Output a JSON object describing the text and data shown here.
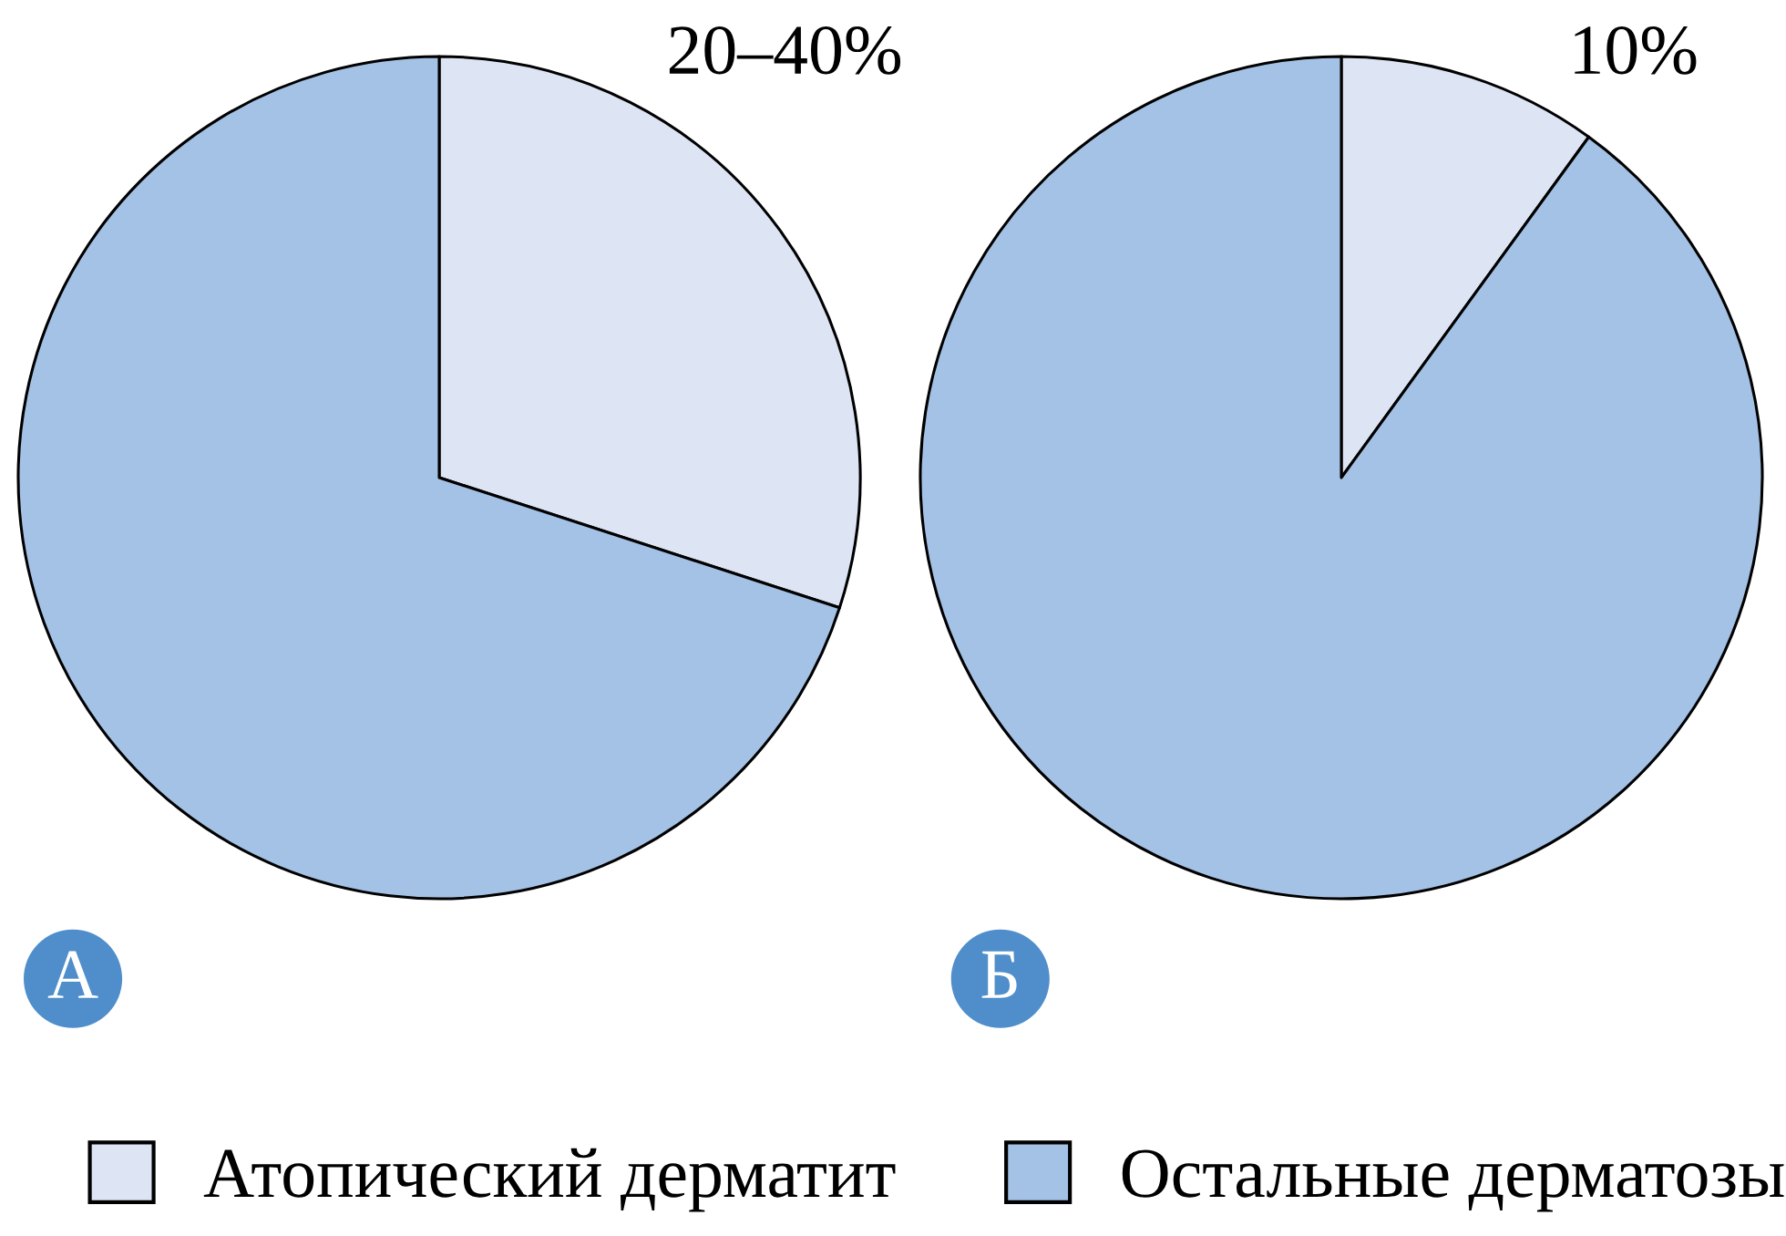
{
  "chart_data": {
    "type": "pie",
    "categories": [
      "Атопический дерматит",
      "Остальные дерматозы"
    ],
    "colors": [
      "#dde4f4",
      "#a4c2e6"
    ],
    "legend": "bottom",
    "annotations": [
      "20–40%"
    ],
    "series": [
      {
        "name": "А",
        "values": [
          30,
          70
        ]
      },
      {
        "name": "Б",
        "values": [
          10,
          90
        ],
        "value_labels": [
          "10%",
          null
        ]
      }
    ]
  }
}
